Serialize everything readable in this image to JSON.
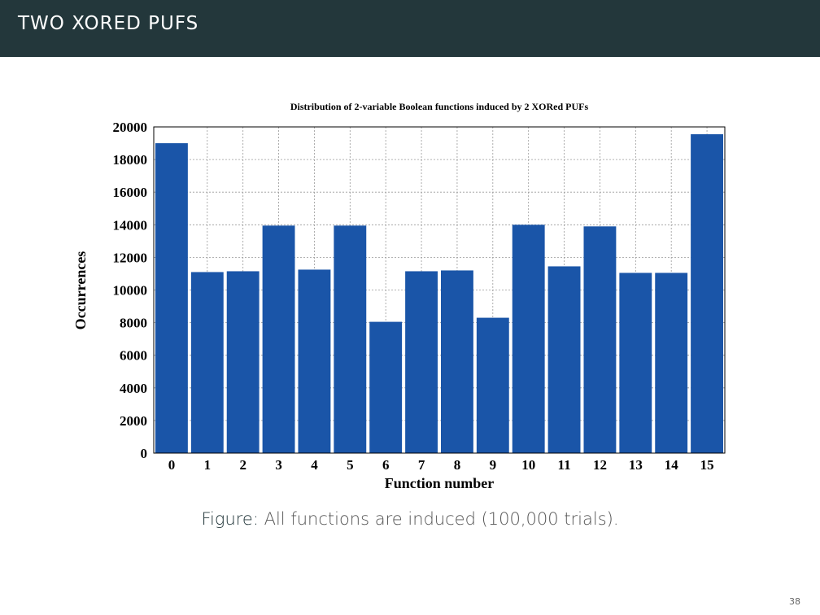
{
  "slide": {
    "title": "TWO XORED PUFS",
    "caption_label": "Figure:",
    "caption_text": "All functions are induced (100,000 trials).",
    "page_number": "38"
  },
  "chart_data": {
    "type": "bar",
    "title": "Distribution of 2-variable Boolean functions induced by 2 XORed PUFs",
    "xlabel": "Function number",
    "ylabel": "Occurrences",
    "categories": [
      "0",
      "1",
      "2",
      "3",
      "4",
      "5",
      "6",
      "7",
      "8",
      "9",
      "10",
      "11",
      "12",
      "13",
      "14",
      "15"
    ],
    "values": [
      19000,
      11100,
      11150,
      13950,
      11250,
      13950,
      8050,
      11150,
      11200,
      8300,
      14000,
      11450,
      13900,
      11050,
      11050,
      19550
    ],
    "ylim": [
      0,
      20000
    ],
    "yticks": [
      0,
      2000,
      4000,
      6000,
      8000,
      10000,
      12000,
      14000,
      16000,
      18000,
      20000
    ],
    "grid": true,
    "bar_color": "#1a55a8"
  }
}
